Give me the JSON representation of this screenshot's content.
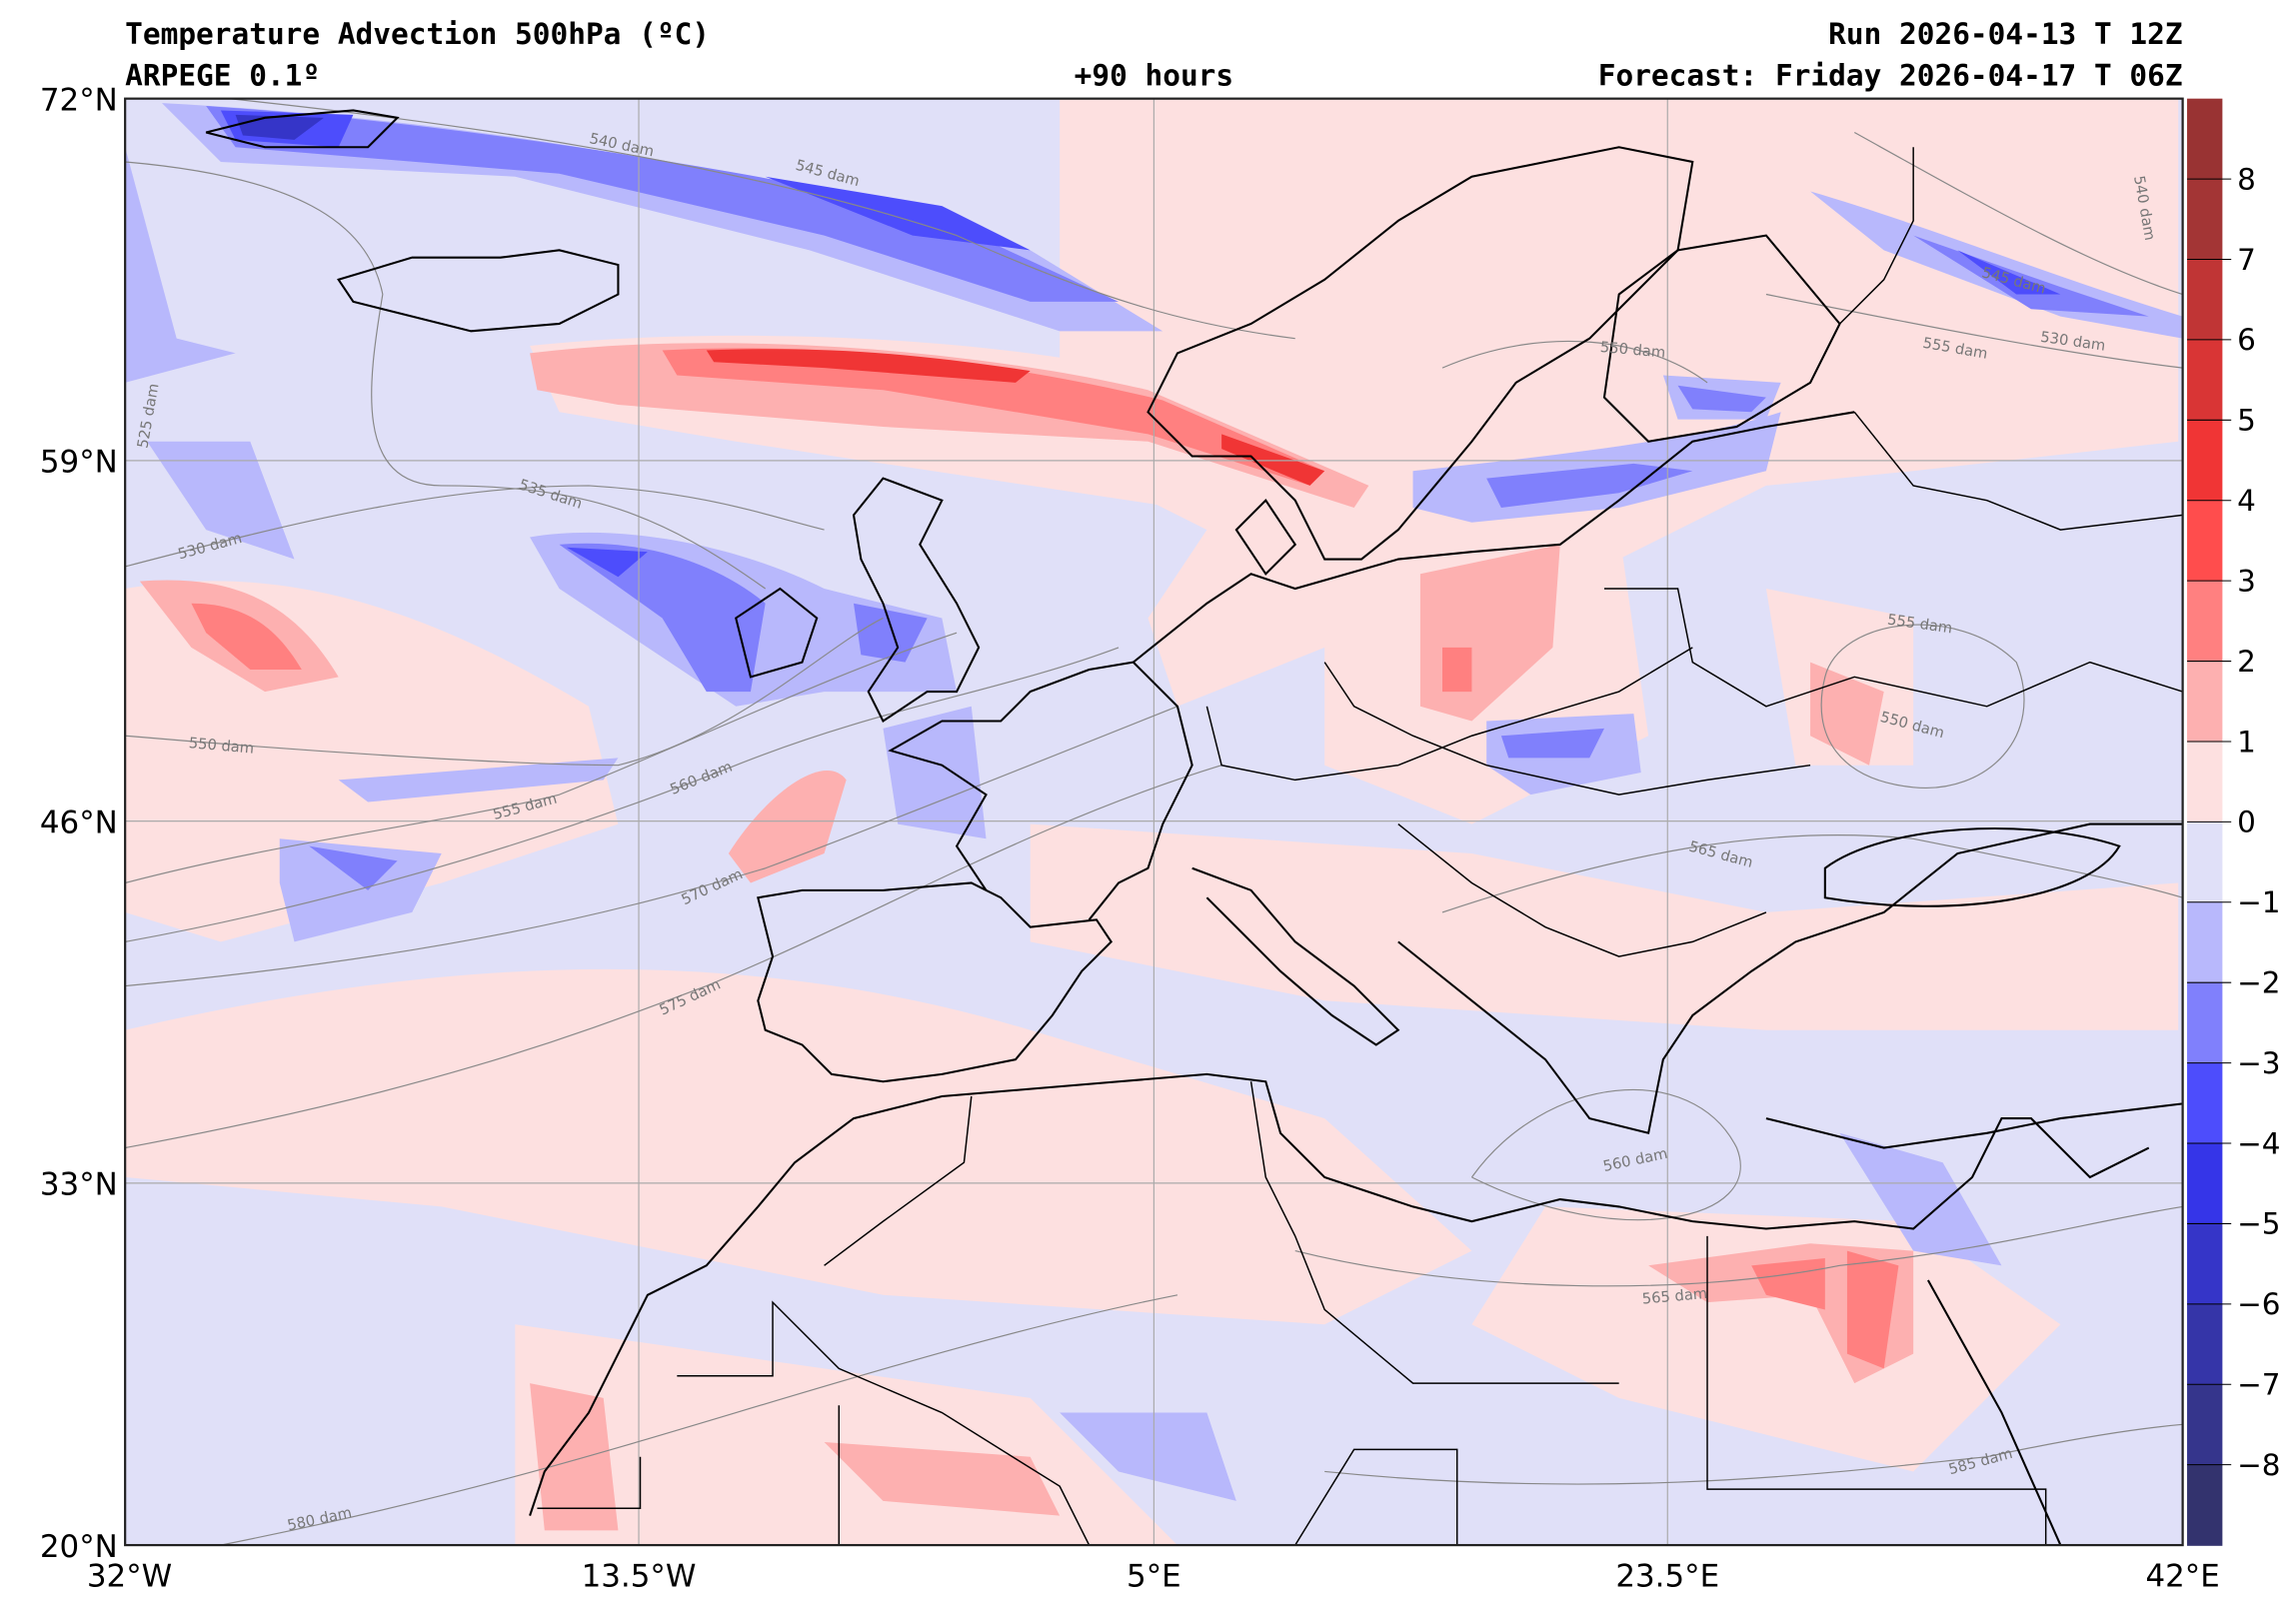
{
  "header": {
    "title": "Temperature Advection  500hPa (ºC)",
    "model": "ARPEGE 0.1º",
    "lead": "+90 hours",
    "run": "Run 2026-04-13 T 12Z",
    "forecast": "Forecast: Friday 2026-04-17 T 06Z"
  },
  "axes": {
    "lat_ticks": [
      "72°N",
      "59°N",
      "46°N",
      "33°N",
      "20°N"
    ],
    "lon_ticks": [
      "32°W",
      "13.5°W",
      "5°E",
      "23.5°E",
      "42°E"
    ]
  },
  "colorbar": {
    "labels": [
      "8",
      "7",
      "6",
      "5",
      "4",
      "3",
      "2",
      "1",
      "0",
      "−1",
      "−2",
      "−3",
      "−4",
      "−5",
      "−6",
      "−7",
      "−8"
    ],
    "colors": [
      "#993333",
      "#a33535",
      "#c03535",
      "#d93535",
      "#f03535",
      "#ff4d4d",
      "#ff8080",
      "#fdb0b0",
      "#fde0e0",
      "#e0e0f8",
      "#b8b8fc",
      "#8080fc",
      "#4d4dfc",
      "#3535e8",
      "#3535c8",
      "#3535a8",
      "#35358c",
      "#33336e"
    ]
  },
  "contour_labels": [
    "540 dam",
    "545 dam",
    "525 dam",
    "535 dam",
    "530 dam",
    "550 dam",
    "555 dam",
    "560 dam",
    "570 dam",
    "575 dam",
    "580 dam",
    "560 dam",
    "565 dam",
    "585 dam",
    "565 dam",
    "550 dam",
    "555 dam",
    "555 dam",
    "530 dam",
    "545 dam",
    "540 dam",
    "550 dam"
  ]
}
